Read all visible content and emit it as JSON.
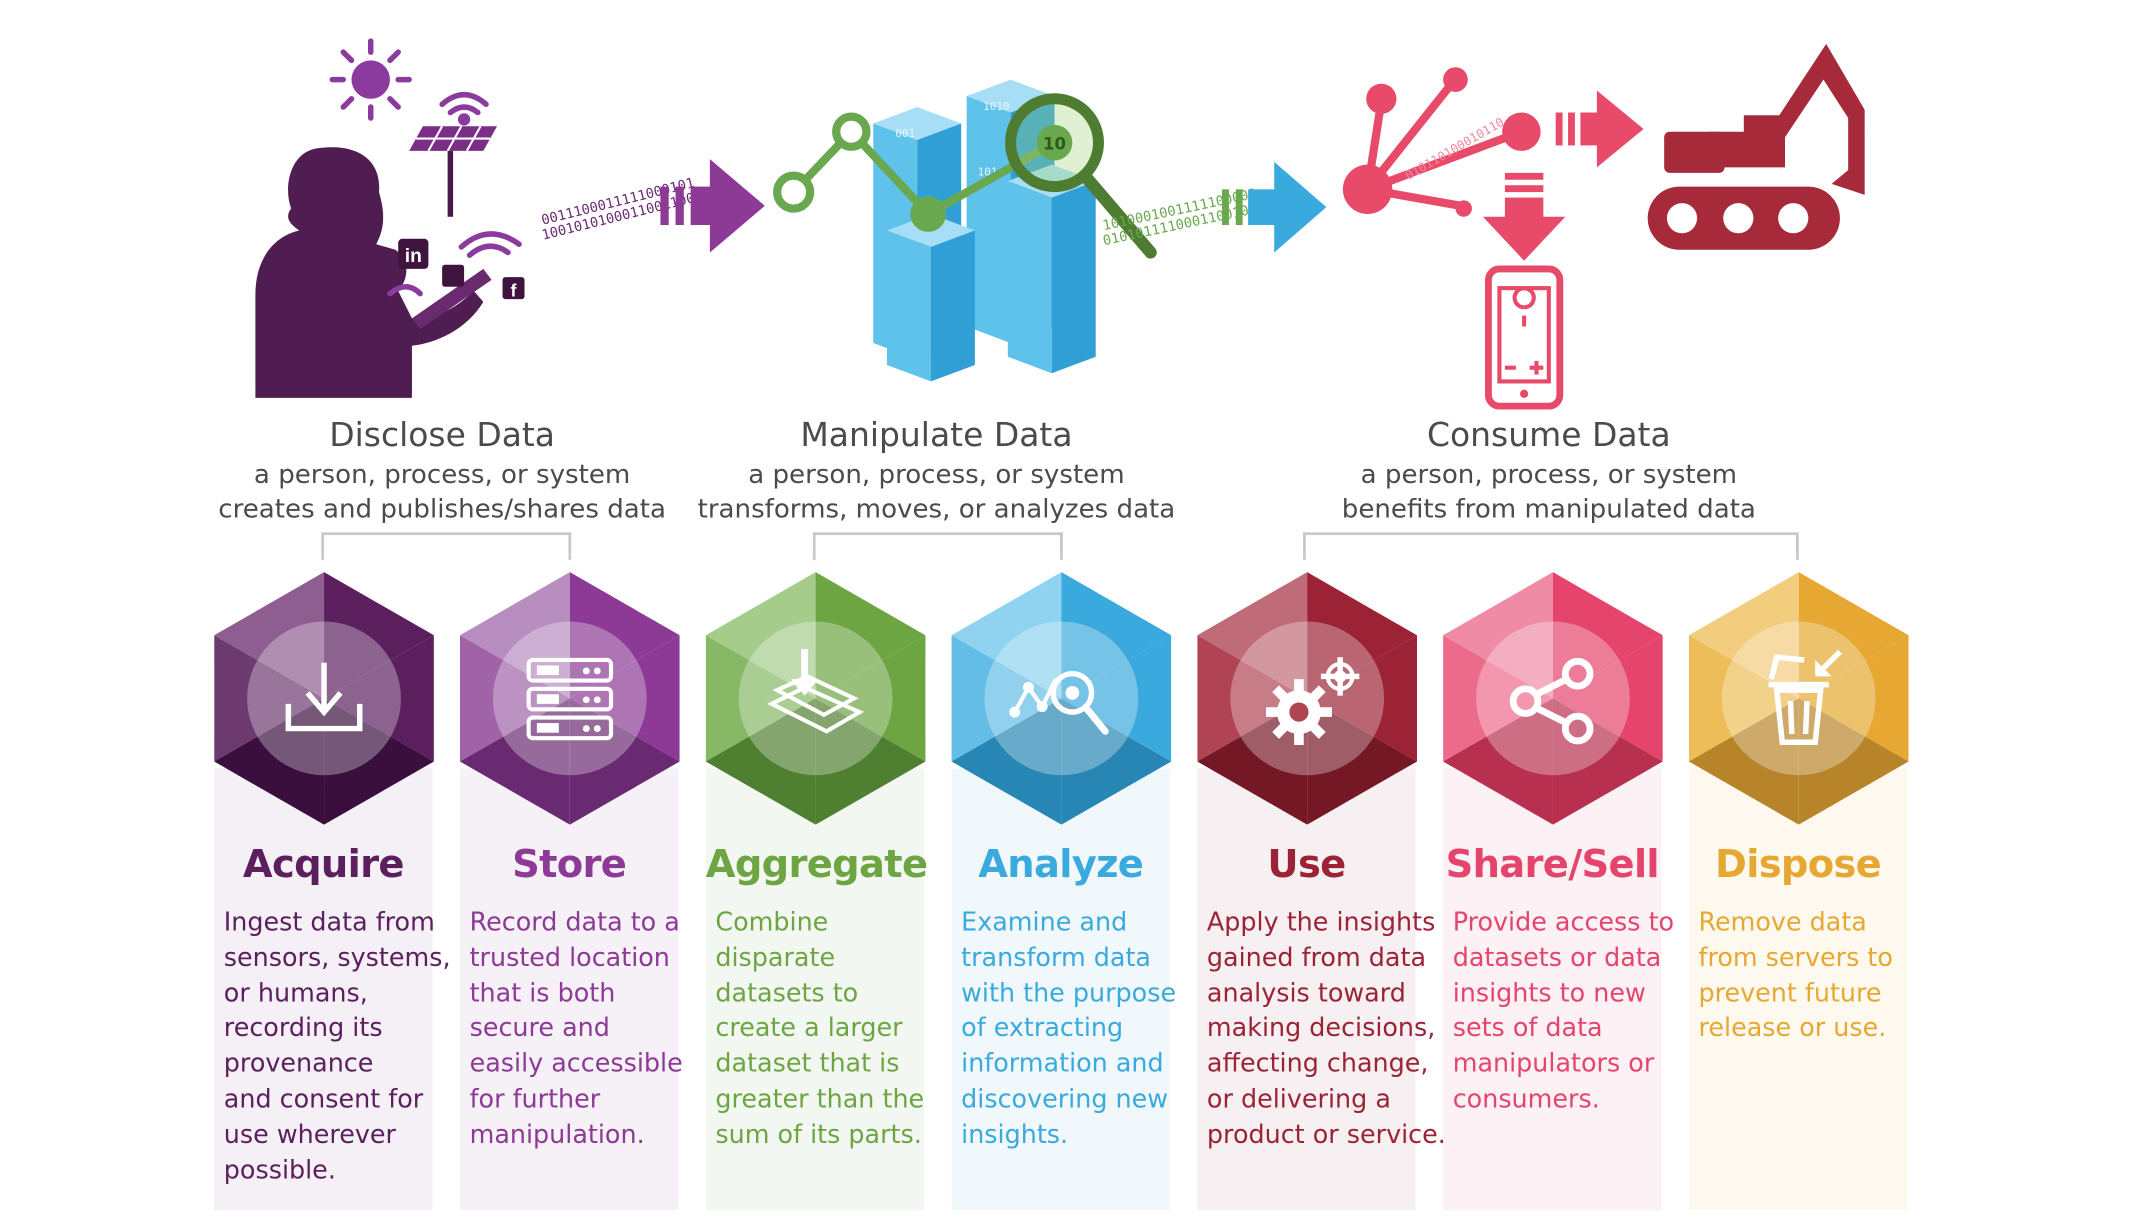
{
  "phases": [
    {
      "title": "Disclose Data",
      "desc1": "a person, process, or system",
      "desc2": "creates and publishes/shares data"
    },
    {
      "title": "Manipulate Data",
      "desc1": "a person, process, or system",
      "desc2": "transforms, moves, or analyzes data"
    },
    {
      "title": "Consume Data",
      "desc1": "a person, process, or system",
      "desc2": "benefits from manipulated data"
    }
  ],
  "steps": [
    {
      "title": "Acquire",
      "color": "#5b1f5e",
      "icon": "download-tray-icon",
      "lines": [
        "Ingest data from",
        "sensors, systems,",
        "or humans,",
        "recording its",
        "provenance",
        "and consent for",
        "use wherever",
        "possible."
      ]
    },
    {
      "title": "Store",
      "color": "#8c3a95",
      "icon": "server-rack-icon",
      "lines": [
        "Record data to a",
        "trusted location",
        "that is both",
        "secure and",
        "easily accessible",
        "for further",
        "manipulation."
      ]
    },
    {
      "title": "Aggregate",
      "color": "#6da543",
      "icon": "stacked-layers-icon",
      "lines": [
        "Combine",
        "disparate",
        "datasets to",
        "create a larger",
        "dataset that is",
        "greater than the",
        "sum of its parts."
      ]
    },
    {
      "title": "Analyze",
      "color": "#3aa9dd",
      "icon": "chart-magnifier-icon",
      "lines": [
        "Examine and",
        "transform data",
        "with the purpose",
        "of extracting",
        "information and",
        "discovering new",
        "insights."
      ]
    },
    {
      "title": "Use",
      "color": "#9b2335",
      "icon": "gears-icon",
      "lines": [
        "Apply the insights",
        "gained from data",
        "analysis toward",
        "making decisions,",
        "affecting change,",
        "or delivering a",
        "product or service."
      ]
    },
    {
      "title": "Share/Sell",
      "color": "#e5446d",
      "icon": "share-icon",
      "lines": [
        "Provide access to",
        "datasets or data",
        "insights to new",
        "sets of data",
        "manipulators or",
        "consumers."
      ]
    },
    {
      "title": "Dispose",
      "color": "#e6a832",
      "icon": "trash-can-icon",
      "lines": [
        "Remove data",
        "from servers to",
        "prevent future",
        "release or use."
      ]
    }
  ],
  "illustration": {
    "binary1": "0011100011111000101",
    "binary2": "1001010100011001100",
    "binary3": "1010001001111100000",
    "binary4": "0101011110001100100",
    "binary5": "010110100010110",
    "bar_tag1": "001",
    "bar_tag2": "1010",
    "bar_tag3": "101",
    "magnifier_number": "10"
  }
}
